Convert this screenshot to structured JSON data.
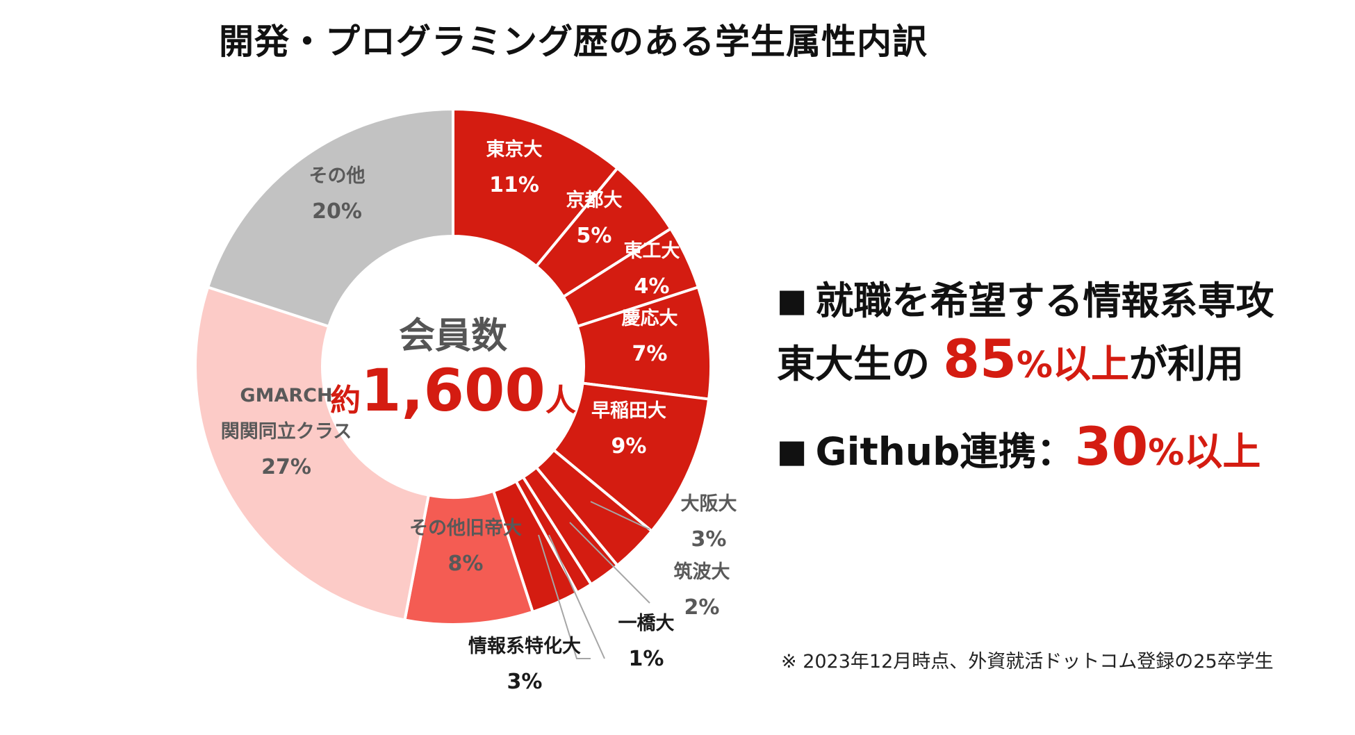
{
  "title": "開発・プログラミング歴のある学生属性内訳",
  "chart_data": {
    "type": "pie",
    "donut": true,
    "center_label": {
      "line1": "会員数",
      "prefix": "約",
      "number": "1,600",
      "suffix": "人"
    },
    "slices": [
      {
        "name": "東京大",
        "label_lines": [
          "東京大"
        ],
        "value": 11,
        "value_label": "11%",
        "color": "#d41c11"
      },
      {
        "name": "京都大",
        "label_lines": [
          "京都大"
        ],
        "value": 5,
        "value_label": "5%",
        "color": "#d41c11"
      },
      {
        "name": "東工大",
        "label_lines": [
          "東工大"
        ],
        "value": 4,
        "value_label": "4%",
        "color": "#d41c11"
      },
      {
        "name": "慶応大",
        "label_lines": [
          "慶応大"
        ],
        "value": 7,
        "value_label": "7%",
        "color": "#d41c11"
      },
      {
        "name": "早稲田大",
        "label_lines": [
          "早稲田大"
        ],
        "value": 9,
        "value_label": "9%",
        "color": "#d41c11"
      },
      {
        "name": "大阪大",
        "label_lines": [
          "大阪大"
        ],
        "value": 3,
        "value_label": "3%",
        "color": "#d41c11"
      },
      {
        "name": "筑波大",
        "label_lines": [
          "筑波大"
        ],
        "value": 2,
        "value_label": "2%",
        "color": "#d41c11"
      },
      {
        "name": "一橋大",
        "label_lines": [
          "一橋大"
        ],
        "value": 1,
        "value_label": "1%",
        "color": "#d41c11"
      },
      {
        "name": "情報系特化大",
        "label_lines": [
          "情報系特化大"
        ],
        "value": 3,
        "value_label": "3%",
        "color": "#d41c11"
      },
      {
        "name": "その他旧帝大",
        "label_lines": [
          "その他旧帝大"
        ],
        "value": 8,
        "value_label": "8%",
        "color": "#f45c53"
      },
      {
        "name": "GMARCH 関関同立クラス",
        "label_lines": [
          "GMARCH",
          "関関同立クラス"
        ],
        "value": 27,
        "value_label": "27%",
        "color": "#fccbc7"
      },
      {
        "name": "その他",
        "label_lines": [
          "その他"
        ],
        "value": 20,
        "value_label": "20%",
        "color": "#c2c2c2"
      }
    ]
  },
  "highlights": {
    "line1": {
      "marker": "■",
      "text": "就職を希望する情報系専攻"
    },
    "line2": {
      "pre": "東大生の ",
      "big": "85",
      "pct": "%",
      "red_tail": "以上",
      "post": "が利用"
    },
    "line3": {
      "marker": "■",
      "pre": "Github連携：",
      "big": "30",
      "pct": "%",
      "red_tail": "以上"
    }
  },
  "footnote": "※ 2023年12月時点、外資就活ドットコム登録の25卒学生"
}
